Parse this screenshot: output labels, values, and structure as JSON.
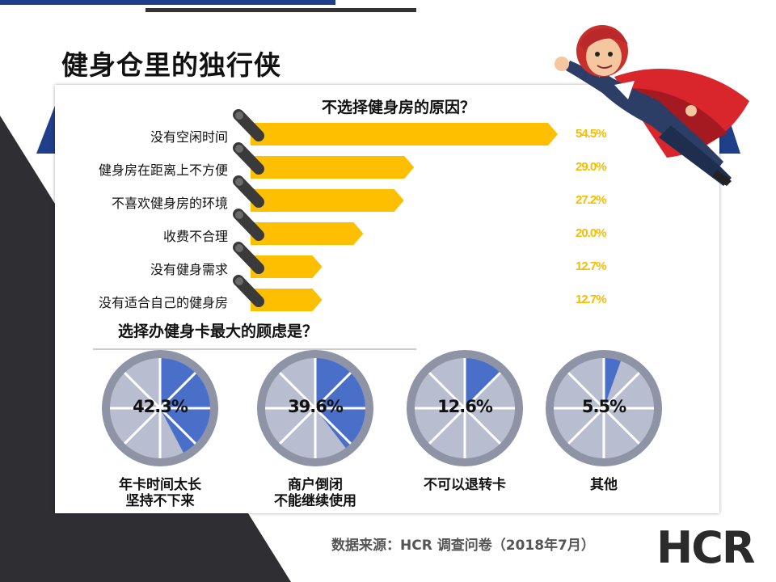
{
  "slide": {
    "title": "健身仓里的独行侠",
    "source": "数据来源：HCR 调查问卷（2018年7月）",
    "logo_text": "HCR"
  },
  "colors": {
    "bar": "#fdbf00",
    "pie_fill": "#4a6fc9",
    "pie_base": "#b9bdd0",
    "pie_ring": "#8e93a5",
    "navy": "#1f3f8b",
    "dark": "#2f2f33"
  },
  "chart_data": [
    {
      "type": "bar",
      "title": "不选择健身房的原因？",
      "categories": [
        "没有空闲时间",
        "健身房在距离上不方便",
        "不喜欢健身房的环境",
        "收费不合理",
        "没有健身需求",
        "没有适合自己的健身房"
      ],
      "values": [
        54.5,
        29.0,
        27.2,
        20.0,
        12.7,
        12.7
      ],
      "value_labels": [
        "54.5%",
        "29.0%",
        "27.2%",
        "20.0%",
        "12.7%",
        "12.7%"
      ],
      "orientation": "horizontal",
      "xlim": [
        0,
        60
      ]
    },
    {
      "type": "pie",
      "title": "选择办健身卡最大的顾虑是？",
      "slices": [
        {
          "caption": [
            "年卡时间太长",
            "坚持不下来"
          ],
          "value": 42.3,
          "value_label": "42.3%"
        },
        {
          "caption": [
            "商户倒闭",
            "不能继续使用"
          ],
          "value": 39.6,
          "value_label": "39.6%"
        },
        {
          "caption": [
            "不可以退转卡"
          ],
          "value": 12.6,
          "value_label": "12.6%"
        },
        {
          "caption": [
            "其他"
          ],
          "value": 5.5,
          "value_label": "5.5%"
        }
      ]
    }
  ]
}
